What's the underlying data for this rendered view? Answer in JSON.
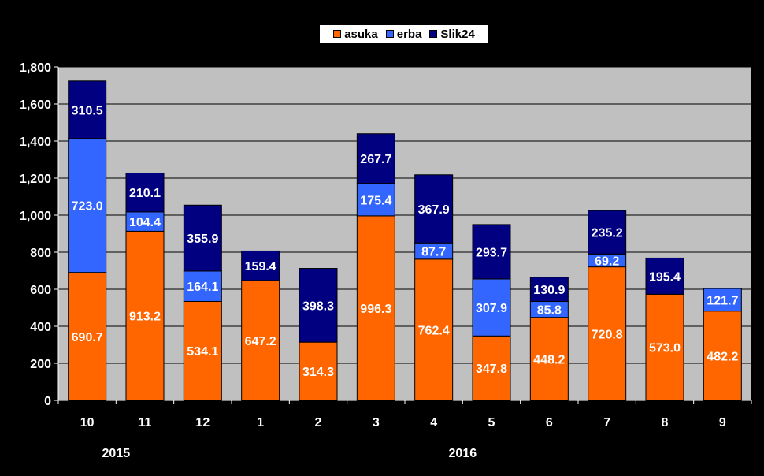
{
  "chart_data": {
    "type": "bar",
    "stacked": true,
    "categories": [
      "10",
      "11",
      "12",
      "1",
      "2",
      "3",
      "4",
      "5",
      "6",
      "7",
      "8",
      "9"
    ],
    "year_labels": [
      {
        "label": "2015",
        "category_index": 1
      },
      {
        "label": "2016",
        "category_index": 7
      }
    ],
    "series": [
      {
        "name": "asuka",
        "color": "#ff6600",
        "values": [
          690.7,
          913.2,
          534.1,
          647.2,
          314.3,
          996.3,
          762.4,
          347.8,
          448.2,
          720.8,
          573.0,
          482.2
        ]
      },
      {
        "name": "erba",
        "color": "#3366ff",
        "values": [
          723.0,
          104.4,
          164.1,
          0,
          0,
          175.4,
          87.7,
          307.9,
          85.8,
          69.2,
          0,
          121.7
        ]
      },
      {
        "name": "Slik24",
        "color": "#000080",
        "values": [
          310.5,
          210.1,
          355.9,
          159.4,
          398.3,
          267.7,
          367.9,
          293.7,
          130.9,
          235.2,
          195.4,
          0
        ]
      }
    ],
    "data_labels": [
      [
        "690.7",
        "913.2",
        "534.1",
        "647.2",
        "314.3",
        "996.3",
        "762.4",
        "347.8",
        "448.2",
        "720.8",
        "573.0",
        "482.2"
      ],
      [
        "723.0",
        "104.4",
        "164.1",
        "",
        "",
        "175.4",
        "87.7",
        "307.9",
        "85.8",
        "69.2",
        "",
        "121.7"
      ],
      [
        "310.5",
        "210.1",
        "355.9",
        "159.4",
        "398.3",
        "267.7",
        "367.9",
        "293.7",
        "130.9",
        "235.2",
        "195.4",
        ""
      ]
    ],
    "yticks": [
      "0",
      "200",
      "400",
      "600",
      "800",
      "1,000",
      "1,200",
      "1,400",
      "1,600",
      "1,800"
    ],
    "ylim": [
      0,
      1800
    ],
    "grid": true,
    "legend_position": "top-center",
    "title": "",
    "xlabel": "",
    "ylabel": "",
    "background": "#000000",
    "plot_background": "#c0c0c0"
  }
}
